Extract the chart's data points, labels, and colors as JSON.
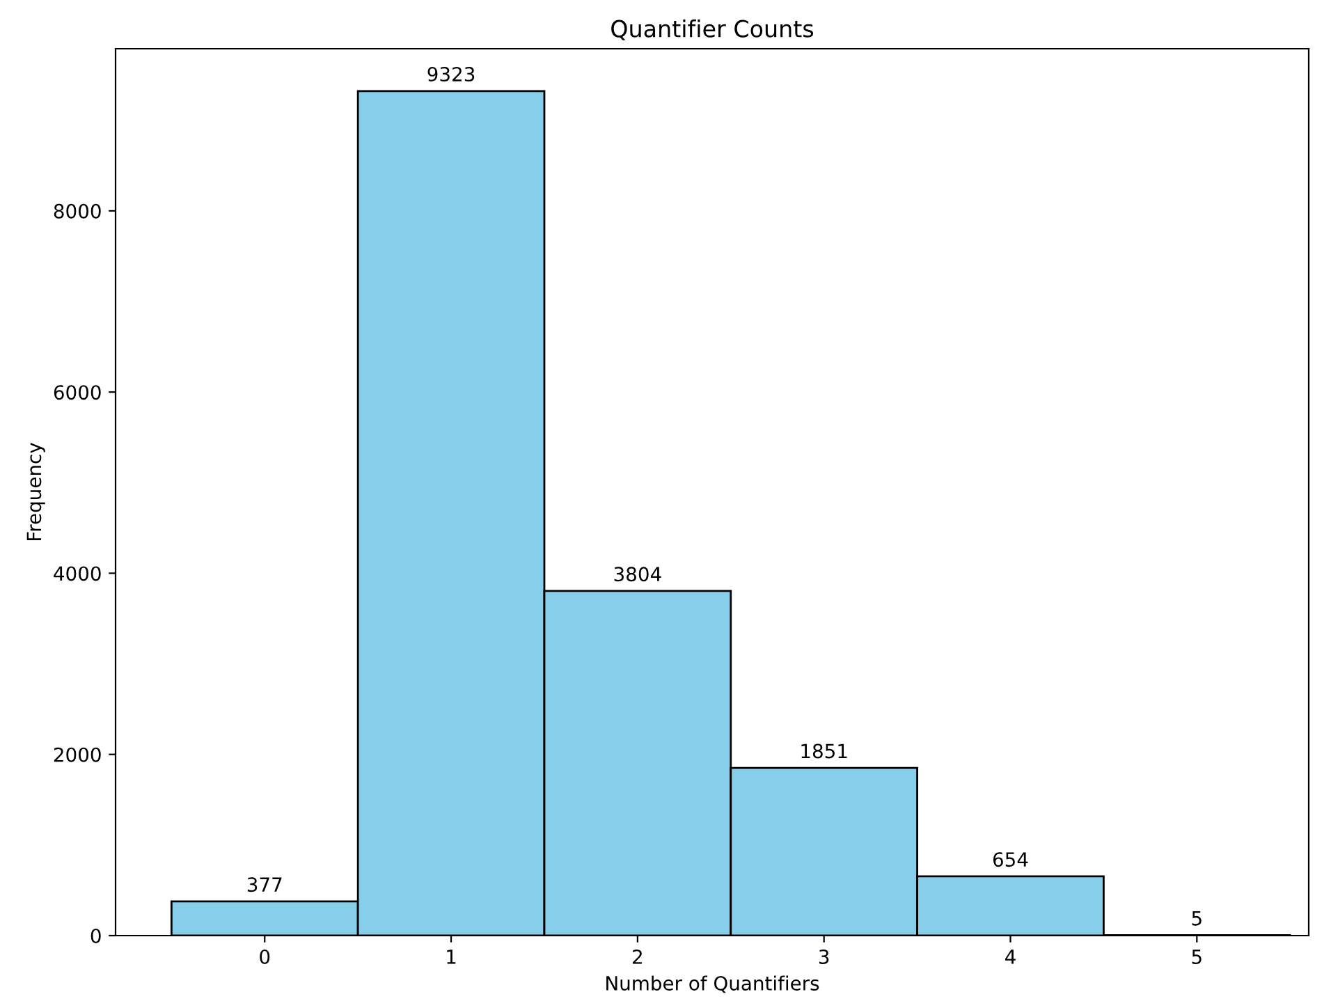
{
  "chart_data": {
    "type": "histogram",
    "title": "Quantifier Counts",
    "xlabel": "Number of Quantifiers",
    "ylabel": "Frequency",
    "bins": [
      -0.5,
      0.5,
      1.5,
      2.5,
      3.5,
      4.5,
      5.5
    ],
    "values": [
      377,
      9323,
      3804,
      1851,
      654,
      5
    ],
    "color": "#87ceeb",
    "data_labels": true,
    "xlim": [
      -0.8,
      5.6
    ],
    "xticks": [
      0,
      1,
      2,
      3,
      4,
      5
    ],
    "ylim": [
      0,
      9790
    ],
    "yticks": [
      0,
      2000,
      4000,
      6000,
      8000
    ],
    "grid": false
  }
}
